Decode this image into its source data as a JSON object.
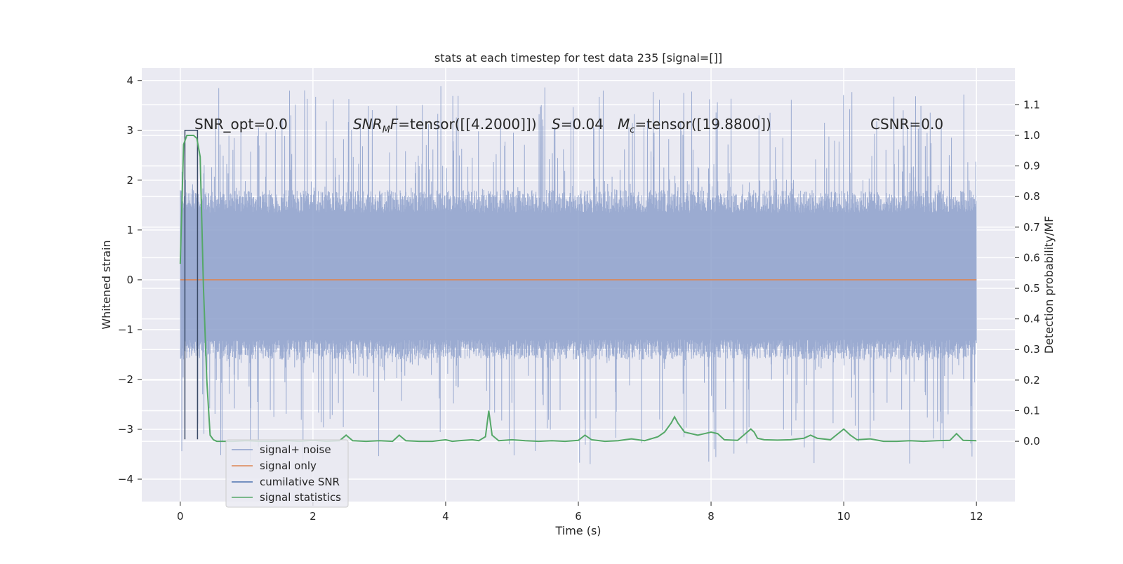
{
  "chart_data": {
    "type": "line",
    "title": "stats at each timestep for test data 235 [signal=[]]",
    "xlabel": "Time (s)",
    "ylabel_left": "Whitened strain",
    "ylabel_right": "Detection probability/MF",
    "xlim": [
      -0.58,
      12.58
    ],
    "ylim_left": [
      -4.45,
      4.25
    ],
    "ylim_right": [
      -0.197,
      1.22
    ],
    "x_ticks": [
      0,
      2,
      4,
      6,
      8,
      10,
      12
    ],
    "x_tick_labels": [
      "0",
      "2",
      "4",
      "6",
      "8",
      "10",
      "12"
    ],
    "y_left_ticks": [
      -4,
      -3,
      -2,
      -1,
      0,
      1,
      2,
      3,
      4
    ],
    "y_left_tick_labels": [
      "−4",
      "−3",
      "−2",
      "−1",
      "0",
      "1",
      "2",
      "3",
      "4"
    ],
    "y_right_ticks": [
      0.0,
      0.1,
      0.2,
      0.3,
      0.4,
      0.5,
      0.6,
      0.7,
      0.8,
      0.9,
      1.0,
      1.1
    ],
    "y_right_tick_labels": [
      "0.0",
      "0.1",
      "0.2",
      "0.3",
      "0.4",
      "0.5",
      "0.6",
      "0.7",
      "0.8",
      "0.9",
      "1.0",
      "1.1"
    ],
    "grid": true,
    "legend_placement": "lower-left",
    "annotations": {
      "snr_opt": "SNR_opt=0.0",
      "snr_mf_main": "SNR",
      "snr_mf_sub": "M",
      "snr_mf_rest": "F=tensor([[4.2000]])",
      "s_main": "S",
      "s_rest": "=0.04",
      "mc_main": "M",
      "mc_sub": "c",
      "mc_rest": "=tensor([19.8800])",
      "csnr": "CSNR=0.0"
    },
    "series": [
      {
        "name": "signal+ noise",
        "color": "#8da0cb",
        "axis": "left",
        "kind": "noise",
        "x_range": [
          0,
          12
        ],
        "typical_range": [
          -1.6,
          1.8
        ],
        "peak_range": [
          -3.7,
          3.9
        ]
      },
      {
        "name": "signal only",
        "color": "#dd8452",
        "axis": "left",
        "x": [
          0,
          12
        ],
        "y": [
          0,
          0
        ]
      },
      {
        "name": "cumilative SNR",
        "color": "#4c72b0",
        "axis": "left",
        "x": [
          0.07,
          0.07,
          0.26,
          0.26
        ],
        "y": [
          -3.2,
          3.0,
          3.0,
          -3.2
        ]
      },
      {
        "name": "signal statistics",
        "color": "#55a868",
        "axis": "right",
        "x": [
          0.0,
          0.05,
          0.1,
          0.15,
          0.2,
          0.25,
          0.3,
          0.35,
          0.4,
          0.45,
          0.5,
          0.55,
          0.6,
          0.8,
          1.0,
          1.2,
          1.4,
          1.6,
          1.8,
          2.0,
          2.2,
          2.4,
          2.5,
          2.6,
          2.8,
          3.0,
          3.2,
          3.3,
          3.4,
          3.6,
          3.8,
          4.0,
          4.1,
          4.2,
          4.4,
          4.5,
          4.6,
          4.65,
          4.7,
          4.8,
          5.0,
          5.2,
          5.4,
          5.6,
          5.8,
          6.0,
          6.1,
          6.2,
          6.4,
          6.6,
          6.8,
          7.0,
          7.2,
          7.3,
          7.4,
          7.45,
          7.5,
          7.6,
          7.8,
          7.9,
          8.0,
          8.1,
          8.2,
          8.4,
          8.6,
          8.65,
          8.7,
          8.8,
          9.0,
          9.2,
          9.4,
          9.5,
          9.6,
          9.8,
          10.0,
          10.1,
          10.2,
          10.4,
          10.6,
          10.8,
          11.0,
          11.2,
          11.4,
          11.6,
          11.7,
          11.8,
          12.0
        ],
        "y": [
          0.58,
          0.97,
          1.0,
          1.0,
          1.0,
          0.99,
          0.93,
          0.5,
          0.2,
          0.02,
          0.005,
          0.0,
          0.0,
          0.0,
          0.002,
          0.0,
          0.0,
          0.002,
          0.0,
          0.003,
          0.0,
          0.002,
          0.02,
          0.002,
          0.0,
          0.002,
          0.0,
          0.02,
          0.002,
          0.0,
          0.0,
          0.005,
          0.0,
          0.002,
          0.005,
          0.002,
          0.015,
          0.1,
          0.02,
          0.002,
          0.005,
          0.002,
          0.0,
          0.002,
          0.0,
          0.003,
          0.02,
          0.005,
          0.0,
          0.002,
          0.008,
          0.002,
          0.015,
          0.03,
          0.06,
          0.08,
          0.06,
          0.03,
          0.02,
          0.025,
          0.03,
          0.025,
          0.005,
          0.003,
          0.04,
          0.03,
          0.01,
          0.005,
          0.004,
          0.005,
          0.01,
          0.02,
          0.01,
          0.005,
          0.04,
          0.02,
          0.005,
          0.008,
          0.0,
          0.0,
          0.002,
          0.0,
          0.002,
          0.003,
          0.025,
          0.003,
          0.002
        ]
      }
    ]
  }
}
